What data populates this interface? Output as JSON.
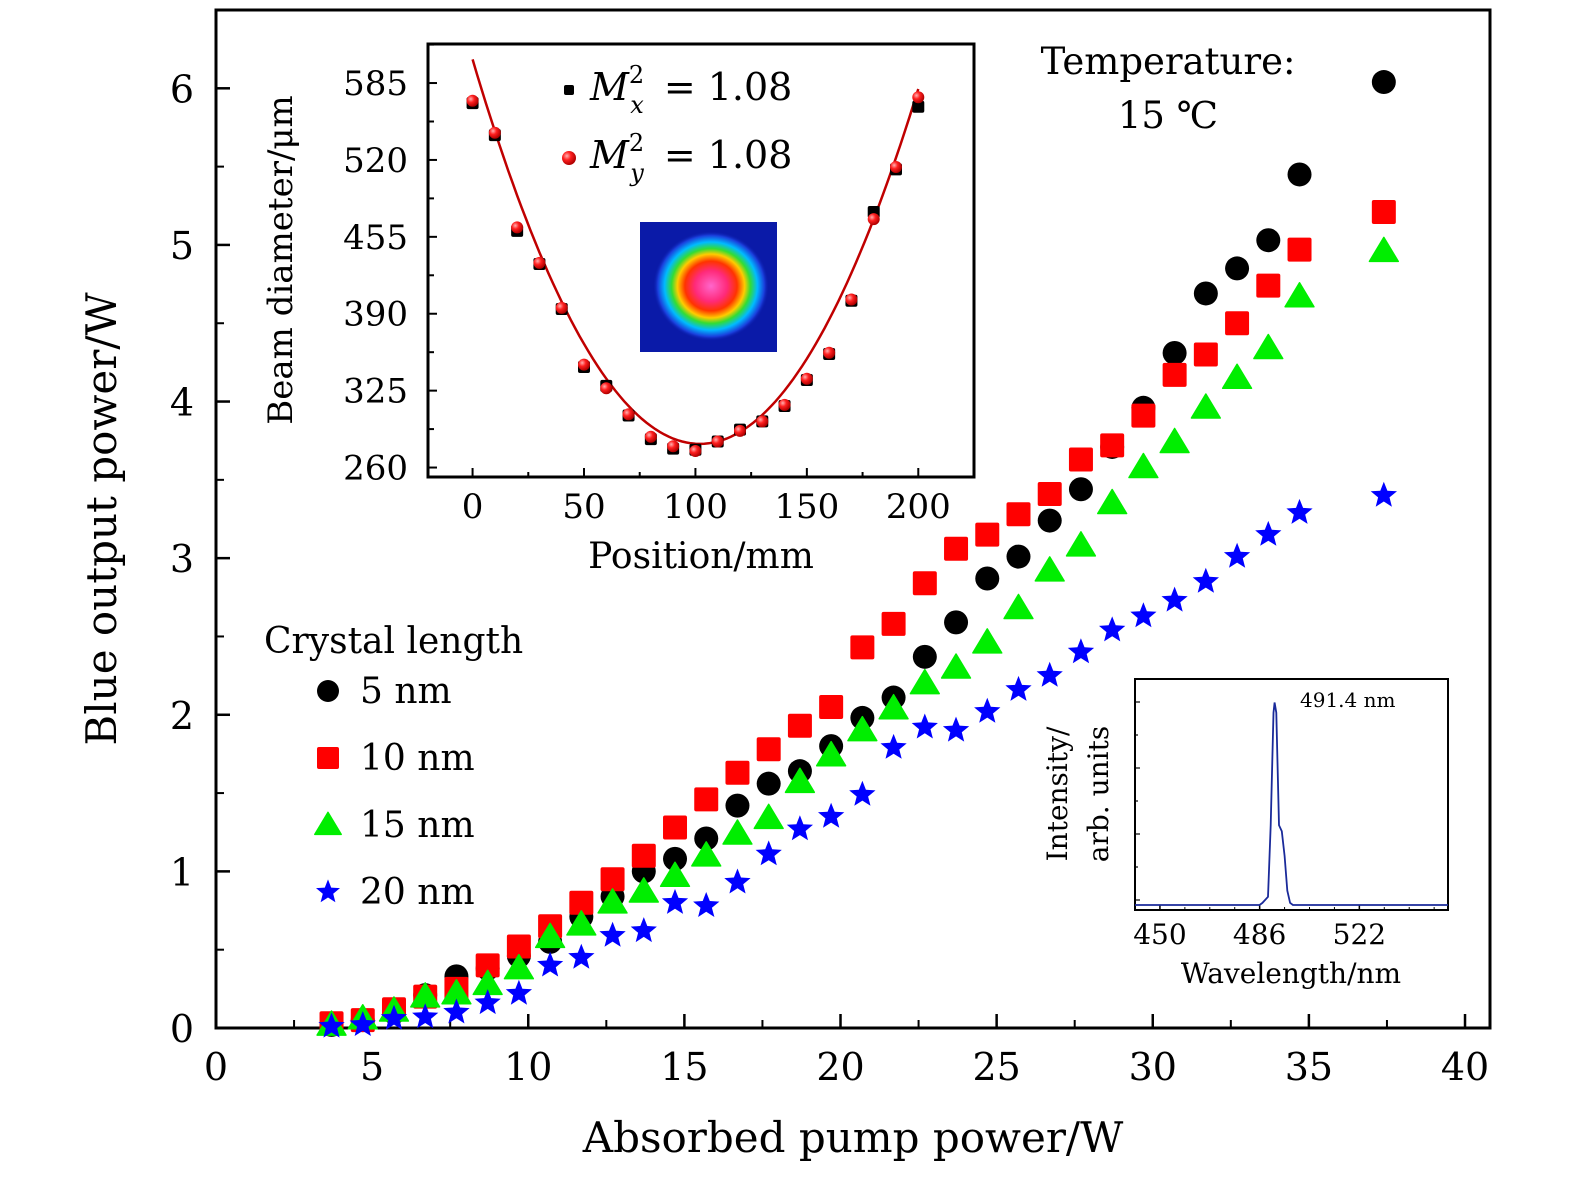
{
  "chart_data": [
    {
      "type": "scatter",
      "title": "",
      "xlabel": "Absorbed pump power/W",
      "ylabel": "Blue output power/W",
      "xlim": [
        0,
        40.8
      ],
      "ylim": [
        0,
        6.5
      ],
      "xticks": [
        "0",
        "5",
        "10",
        "15",
        "20",
        "25",
        "30",
        "35",
        "40"
      ],
      "yticks": [
        "0",
        "1",
        "2",
        "3",
        "4",
        "5",
        "6"
      ],
      "grid": false,
      "legend": {
        "title": "Crystal length",
        "placement": "middle-left"
      },
      "annotation": {
        "line1": "Temperature:",
        "line2": "15 ℃"
      },
      "x": [
        3.7,
        4.7,
        5.7,
        6.7,
        7.7,
        8.7,
        9.7,
        10.7,
        11.7,
        12.7,
        13.7,
        14.7,
        15.7,
        16.7,
        17.7,
        18.7,
        19.7,
        20.7,
        21.7,
        22.7,
        23.7,
        24.7,
        25.7,
        26.7,
        27.7,
        28.7,
        29.7,
        30.7,
        31.7,
        32.7,
        33.7,
        34.7,
        37.4
      ],
      "series": [
        {
          "name": "5 nm",
          "marker": "circle",
          "color": "#000000",
          "values": [
            0.02,
            0.05,
            0.1,
            0.21,
            0.33,
            0.38,
            0.46,
            0.55,
            0.71,
            0.84,
            1.0,
            1.08,
            1.21,
            1.42,
            1.56,
            1.64,
            1.8,
            1.98,
            2.11,
            2.37,
            2.59,
            2.87,
            3.01,
            3.24,
            3.44,
            3.71,
            3.96,
            4.31,
            4.69,
            4.85,
            5.03,
            5.45,
            6.04
          ]
        },
        {
          "name": "10 nm",
          "marker": "square",
          "color": "#ff0000",
          "values": [
            0.03,
            0.05,
            0.12,
            0.2,
            0.25,
            0.4,
            0.52,
            0.65,
            0.8,
            0.95,
            1.1,
            1.28,
            1.46,
            1.63,
            1.78,
            1.93,
            2.05,
            2.43,
            2.58,
            2.84,
            3.06,
            3.15,
            3.28,
            3.41,
            3.63,
            3.72,
            3.91,
            4.17,
            4.3,
            4.5,
            4.74,
            4.97,
            5.21
          ]
        },
        {
          "name": "15 nm",
          "marker": "triangle",
          "color": "#00ee00",
          "values": [
            0.02,
            0.06,
            0.11,
            0.2,
            0.22,
            0.28,
            0.38,
            0.58,
            0.66,
            0.8,
            0.87,
            0.97,
            1.1,
            1.24,
            1.34,
            1.57,
            1.74,
            1.9,
            2.04,
            2.2,
            2.3,
            2.46,
            2.68,
            2.92,
            3.08,
            3.35,
            3.58,
            3.74,
            3.96,
            4.15,
            4.34,
            4.67,
            4.96
          ]
        },
        {
          "name": "20 nm",
          "marker": "star",
          "color": "#0000ff",
          "values": [
            0.01,
            0.02,
            0.06,
            0.07,
            0.1,
            0.16,
            0.22,
            0.4,
            0.45,
            0.59,
            0.62,
            0.8,
            0.78,
            0.93,
            1.11,
            1.27,
            1.35,
            1.49,
            1.79,
            1.92,
            1.9,
            2.02,
            2.16,
            2.25,
            2.4,
            2.54,
            2.63,
            2.73,
            2.85,
            3.01,
            3.15,
            3.29,
            3.4
          ]
        }
      ]
    },
    {
      "type": "scatter",
      "title": "",
      "xlabel": "Position/mm",
      "ylabel": "Beam diameter/μm",
      "xlim": [
        -20,
        225
      ],
      "ylim": [
        252,
        618
      ],
      "xticks": [
        "0",
        "50",
        "100",
        "150",
        "200"
      ],
      "yticks": [
        "260",
        "325",
        "390",
        "455",
        "520",
        "585"
      ],
      "legend": {
        "placement": "top-center"
      },
      "beam_profile_image": "circular beam spot (false color)",
      "x": [
        0,
        10,
        20,
        30,
        40,
        50,
        60,
        70,
        80,
        90,
        100,
        110,
        120,
        130,
        140,
        150,
        160,
        170,
        180,
        190,
        200
      ],
      "series": [
        {
          "name": "M_x^2 = 1.08",
          "label_main": "M",
          "label_sup": "2",
          "label_sub": "x",
          "label_value": "= 1.08",
          "marker": "square",
          "color": "#000000",
          "values": [
            568,
            541,
            460,
            432,
            394,
            345,
            329,
            304,
            284,
            276,
            275,
            282,
            292,
            299,
            312,
            334,
            356,
            401,
            476,
            512,
            565
          ]
        },
        {
          "name": "M_y^2 = 1.08",
          "label_main": "M",
          "label_sup": "2",
          "label_sub": "y",
          "label_value": "= 1.08",
          "marker": "sphere",
          "color": "#ff1a1a",
          "values": [
            570,
            543,
            463,
            433,
            395,
            347,
            327,
            305,
            286,
            278,
            274,
            282,
            291,
            299,
            313,
            335,
            357,
            402,
            470,
            514,
            573
          ]
        }
      ],
      "fit": {
        "type": "parabola",
        "vertex_x": 102,
        "vertex_y": 280,
        "color": "#c00000"
      }
    },
    {
      "type": "line",
      "title": "",
      "xlabel": "Wavelength/nm",
      "ylabel_line1": "Intensity/",
      "ylabel_line2": "arb. units",
      "xlim": [
        441,
        554
      ],
      "ylim": [
        0,
        1.1
      ],
      "xticks": [
        "450",
        "486",
        "522"
      ],
      "annotation": "491.4 nm",
      "peak_wavelength": 491.4,
      "color": "#1a2a9a",
      "x": [
        441,
        480,
        486,
        487,
        489,
        490,
        491,
        491.4,
        492,
        493,
        494,
        495,
        496,
        497,
        498,
        500,
        554
      ],
      "values": [
        0.01,
        0.01,
        0.01,
        0.02,
        0.05,
        0.4,
        0.95,
        1.0,
        0.95,
        0.4,
        0.37,
        0.25,
        0.08,
        0.02,
        0.01,
        0.01,
        0.01
      ]
    }
  ]
}
